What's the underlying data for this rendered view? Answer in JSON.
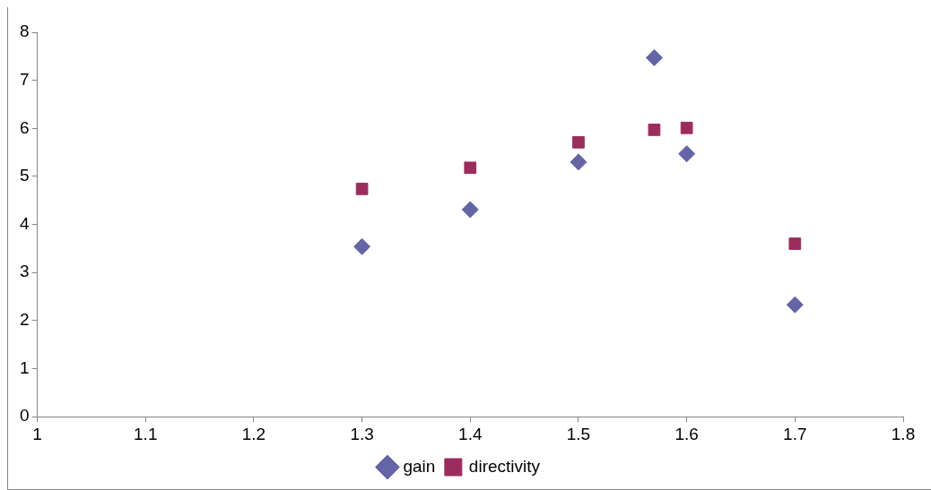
{
  "chart_data": {
    "type": "scatter",
    "xlim": [
      1,
      1.8
    ],
    "xticks": [
      1,
      1.1,
      1.2,
      1.3,
      1.4,
      1.5,
      1.6,
      1.7,
      1.8
    ],
    "ylim": [
      0,
      8
    ],
    "yticks": [
      0,
      1,
      2,
      3,
      4,
      5,
      6,
      7,
      8
    ],
    "grid": false,
    "legend": "bottom",
    "series": [
      {
        "name": "gain",
        "color": "#6565a6",
        "marker": "diamond",
        "x": [
          1.3,
          1.4,
          1.5,
          1.57,
          1.6,
          1.7
        ],
        "values": [
          3.54,
          4.31,
          5.3,
          7.47,
          5.47,
          2.33
        ]
      },
      {
        "name": "directivity",
        "color": "#9b2d5e",
        "marker": "square",
        "x": [
          1.3,
          1.4,
          1.5,
          1.57,
          1.6,
          1.7
        ],
        "values": [
          4.74,
          5.18,
          5.71,
          5.97,
          6.01,
          3.6
        ]
      }
    ]
  }
}
